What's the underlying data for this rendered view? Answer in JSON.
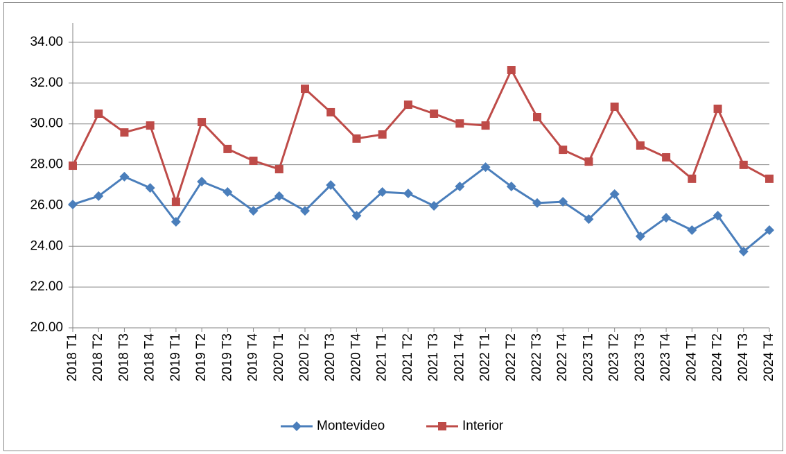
{
  "chart_data": {
    "type": "line",
    "categories": [
      "2018 T1",
      "2018 T2",
      "2018 T3",
      "2018 T4",
      "2019 T1",
      "2019 T2",
      "2019 T3",
      "2019 T4",
      "2020 T1",
      "2020 T2",
      "2020 T3",
      "2020 T4",
      "2021 T1",
      "2021 T2",
      "2021 T3",
      "2021 T4",
      "2022 T1",
      "2022 T2",
      "2022 T3",
      "2022 T4",
      "2023 T1",
      "2023 T2",
      "2023 T3",
      "2023 T4",
      "2024 T1",
      "2024 T2",
      "2024 T3",
      "2024 T4"
    ],
    "series": [
      {
        "name": "Montevideo",
        "color": "#4a7ebb",
        "marker": "diamond",
        "values": [
          26.05,
          26.46,
          27.41,
          26.86,
          25.2,
          27.17,
          26.66,
          25.74,
          26.46,
          25.74,
          27.0,
          25.5,
          26.66,
          26.59,
          25.98,
          26.93,
          27.88,
          26.93,
          26.12,
          26.18,
          25.33,
          26.56,
          24.49,
          25.4,
          24.79,
          25.5,
          23.74,
          24.79
        ]
      },
      {
        "name": "Interior",
        "color": "#be4b48",
        "marker": "square",
        "values": [
          27.95,
          30.5,
          29.58,
          29.92,
          26.18,
          30.09,
          28.77,
          28.19,
          27.78,
          31.72,
          30.57,
          29.28,
          29.48,
          30.94,
          30.5,
          30.02,
          29.92,
          32.64,
          30.33,
          28.73,
          28.15,
          30.84,
          28.94,
          28.36,
          27.31,
          30.74,
          27.99,
          27.31
        ]
      }
    ],
    "ylim": [
      20,
      34
    ],
    "yticks": [
      {
        "value": 20,
        "label": "20.00"
      },
      {
        "value": 22,
        "label": "22.00"
      },
      {
        "value": 24,
        "label": "24.00"
      },
      {
        "value": 26,
        "label": "26.00"
      },
      {
        "value": 28,
        "label": "28.00"
      },
      {
        "value": 30,
        "label": "30.00"
      },
      {
        "value": 32,
        "label": "32.00"
      },
      {
        "value": 34,
        "label": "34.00"
      }
    ],
    "grid": true,
    "legend": "bottom"
  }
}
